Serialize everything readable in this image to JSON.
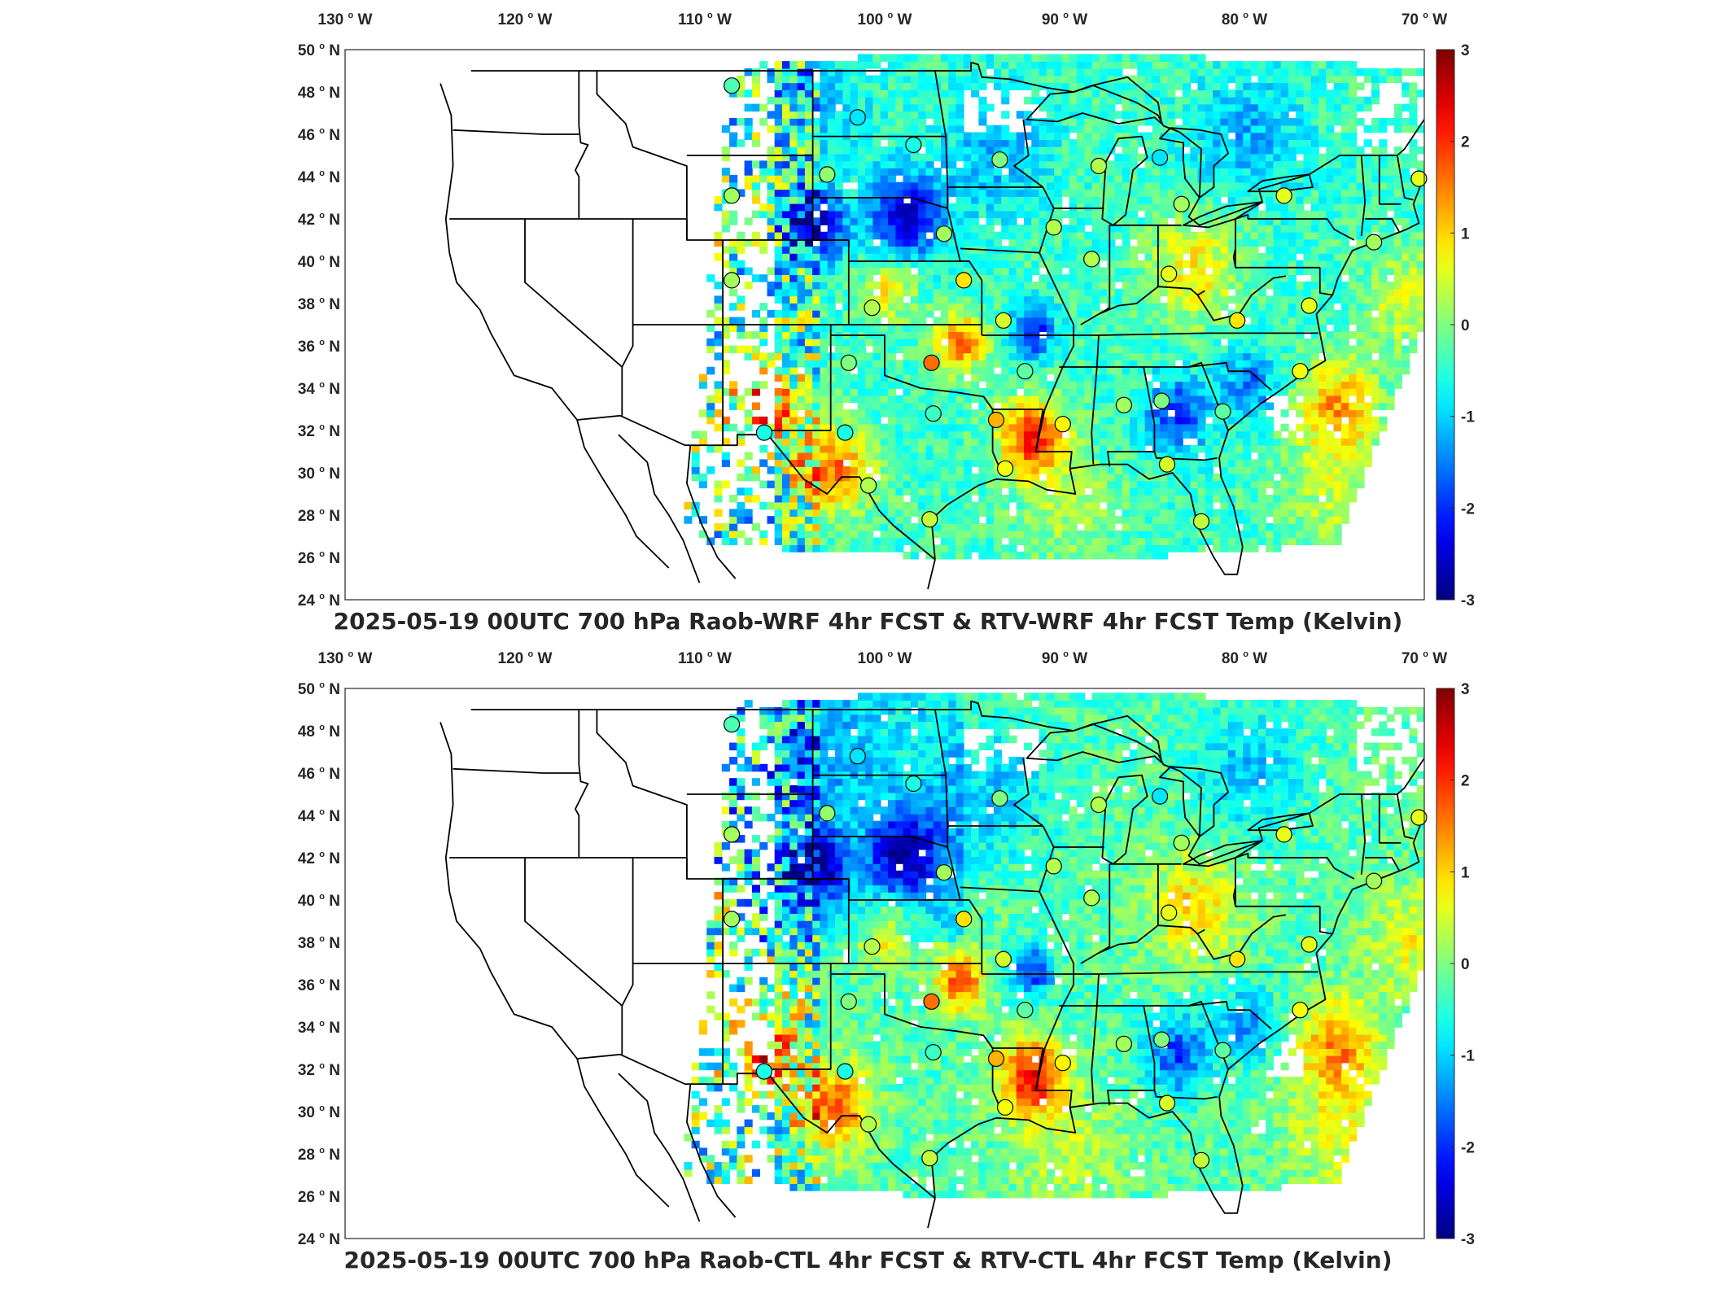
{
  "panels": [
    {
      "title": "2025-05-19 00UTC 700 hPa Raob-WRF 4hr FCST & RTV-WRF 4hr FCST Temp (Kelvin)",
      "variant": "wrf"
    },
    {
      "title": "2025-05-19 00UTC 700 hPa Raob-CTL 4hr FCST & RTV-CTL 4hr FCST Temp (Kelvin)",
      "variant": "ctl"
    }
  ],
  "axes": {
    "lon_ticks": [
      {
        "value": -130,
        "label": "130",
        "hemi": "W"
      },
      {
        "value": -120,
        "label": "120",
        "hemi": "W"
      },
      {
        "value": -110,
        "label": "110",
        "hemi": "W"
      },
      {
        "value": -100,
        "label": "100",
        "hemi": "W"
      },
      {
        "value": -90,
        "label": "90",
        "hemi": "W"
      },
      {
        "value": -80,
        "label": "80",
        "hemi": "W"
      },
      {
        "value": -70,
        "label": "70",
        "hemi": "W"
      }
    ],
    "lat_ticks": [
      {
        "value": 24,
        "label": "24",
        "hemi": "N"
      },
      {
        "value": 26,
        "label": "26",
        "hemi": "N"
      },
      {
        "value": 28,
        "label": "28",
        "hemi": "N"
      },
      {
        "value": 30,
        "label": "30",
        "hemi": "N"
      },
      {
        "value": 32,
        "label": "32",
        "hemi": "N"
      },
      {
        "value": 34,
        "label": "34",
        "hemi": "N"
      },
      {
        "value": 36,
        "label": "36",
        "hemi": "N"
      },
      {
        "value": 38,
        "label": "38",
        "hemi": "N"
      },
      {
        "value": 40,
        "label": "40",
        "hemi": "N"
      },
      {
        "value": 42,
        "label": "42",
        "hemi": "N"
      },
      {
        "value": 44,
        "label": "44",
        "hemi": "N"
      },
      {
        "value": 46,
        "label": "46",
        "hemi": "N"
      },
      {
        "value": 48,
        "label": "48",
        "hemi": "N"
      },
      {
        "value": 50,
        "label": "50",
        "hemi": "N"
      }
    ],
    "lon_range": [
      -130,
      -70
    ],
    "lat_range": [
      24,
      50
    ]
  },
  "colorbar": {
    "range": [
      -3,
      3
    ],
    "ticks": [
      "3",
      "2",
      "1",
      "0",
      "-1",
      "-2",
      "-3"
    ],
    "colormap": "jet"
  },
  "stations": [
    {
      "lon": -108.5,
      "lat": 48.3,
      "wrf": -0.3,
      "ctl": -0.3
    },
    {
      "lon": -101.5,
      "lat": 46.8,
      "wrf": -0.9,
      "ctl": -0.9
    },
    {
      "lon": -98.4,
      "lat": 45.5,
      "wrf": -0.6,
      "ctl": -0.6
    },
    {
      "lon": -93.6,
      "lat": 44.8,
      "wrf": 0.0,
      "ctl": 0.0
    },
    {
      "lon": -88.1,
      "lat": 44.5,
      "wrf": 0.3,
      "ctl": 0.3
    },
    {
      "lon": -84.7,
      "lat": 44.9,
      "wrf": -0.9,
      "ctl": -0.9
    },
    {
      "lon": -103.2,
      "lat": 44.1,
      "wrf": 0.1,
      "ctl": 0.1
    },
    {
      "lon": -108.5,
      "lat": 43.1,
      "wrf": 0.2,
      "ctl": 0.2
    },
    {
      "lon": -83.5,
      "lat": 42.7,
      "wrf": 0.2,
      "ctl": 0.2
    },
    {
      "lon": -77.8,
      "lat": 43.1,
      "wrf": 0.6,
      "ctl": 0.6
    },
    {
      "lon": -70.3,
      "lat": 43.9,
      "wrf": 0.6,
      "ctl": 0.6
    },
    {
      "lon": -96.7,
      "lat": 41.3,
      "wrf": 0.2,
      "ctl": 0.2
    },
    {
      "lon": -90.6,
      "lat": 41.6,
      "wrf": 0.3,
      "ctl": 0.3
    },
    {
      "lon": -88.5,
      "lat": 40.1,
      "wrf": 0.3,
      "ctl": 0.3
    },
    {
      "lon": -84.2,
      "lat": 39.4,
      "wrf": 0.6,
      "ctl": 0.6
    },
    {
      "lon": -72.8,
      "lat": 40.9,
      "wrf": 0.2,
      "ctl": 0.2
    },
    {
      "lon": -95.6,
      "lat": 39.1,
      "wrf": 0.9,
      "ctl": 0.9
    },
    {
      "lon": -108.5,
      "lat": 39.1,
      "wrf": 0.2,
      "ctl": 0.2
    },
    {
      "lon": -100.7,
      "lat": 37.8,
      "wrf": 0.3,
      "ctl": 0.3
    },
    {
      "lon": -93.4,
      "lat": 37.2,
      "wrf": 0.5,
      "ctl": 0.5
    },
    {
      "lon": -80.4,
      "lat": 37.2,
      "wrf": 0.9,
      "ctl": 0.9
    },
    {
      "lon": -76.4,
      "lat": 37.9,
      "wrf": 0.6,
      "ctl": 0.6
    },
    {
      "lon": -97.4,
      "lat": 35.2,
      "wrf": 1.6,
      "ctl": 1.6
    },
    {
      "lon": -102.0,
      "lat": 35.2,
      "wrf": 0.0,
      "ctl": 0.0
    },
    {
      "lon": -92.2,
      "lat": 34.8,
      "wrf": -0.2,
      "ctl": -0.2
    },
    {
      "lon": -76.9,
      "lat": 34.8,
      "wrf": 0.7,
      "ctl": 0.7
    },
    {
      "lon": -86.7,
      "lat": 33.2,
      "wrf": 0.2,
      "ctl": 0.2
    },
    {
      "lon": -84.6,
      "lat": 33.4,
      "wrf": 0.0,
      "ctl": 0.0
    },
    {
      "lon": -97.3,
      "lat": 32.8,
      "wrf": -0.4,
      "ctl": -0.4
    },
    {
      "lon": -90.1,
      "lat": 32.3,
      "wrf": 0.8,
      "ctl": 0.8
    },
    {
      "lon": -93.8,
      "lat": 32.5,
      "wrf": 1.2,
      "ctl": 1.2
    },
    {
      "lon": -81.2,
      "lat": 32.9,
      "wrf": -0.2,
      "ctl": -0.2
    },
    {
      "lon": -106.7,
      "lat": 31.9,
      "wrf": -0.6,
      "ctl": -0.6
    },
    {
      "lon": -102.2,
      "lat": 31.9,
      "wrf": -0.6,
      "ctl": -0.6
    },
    {
      "lon": -100.9,
      "lat": 29.4,
      "wrf": 0.3,
      "ctl": 0.3
    },
    {
      "lon": -97.5,
      "lat": 27.8,
      "wrf": 0.4,
      "ctl": 0.4
    },
    {
      "lon": -93.3,
      "lat": 30.2,
      "wrf": 0.7,
      "ctl": 0.7
    },
    {
      "lon": -84.3,
      "lat": 30.4,
      "wrf": 0.5,
      "ctl": 0.5
    },
    {
      "lon": -82.4,
      "lat": 27.7,
      "wrf": 0.4,
      "ctl": 0.4
    }
  ]
}
